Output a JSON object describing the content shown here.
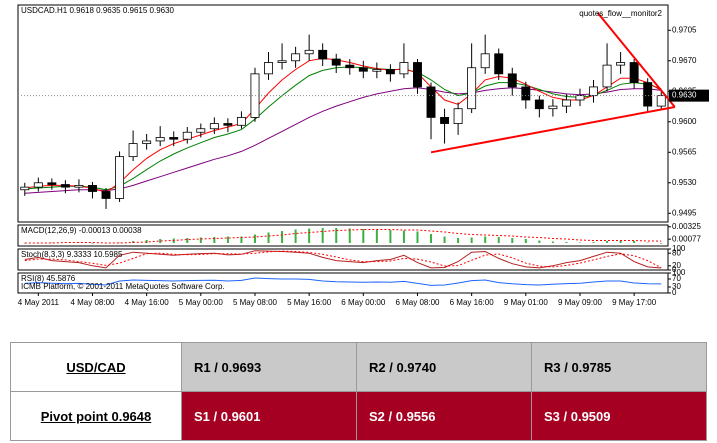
{
  "chart_data": [
    {
      "type": "candlestick",
      "title": "USDCAD.H1 0.9618 0.9635 0.9615 0.9630",
      "indicator_label": "quotes_flow__monitor2",
      "categories": [
        null,
        "4 May 2011",
        null,
        null,
        null,
        "4 May 08:00",
        null,
        null,
        null,
        "4 May 16:00",
        null,
        null,
        null,
        "5 May 00:00",
        null,
        null,
        null,
        "5 May 08:00",
        null,
        null,
        null,
        "5 May 16:00",
        null,
        null,
        null,
        "6 May 00:00",
        null,
        null,
        null,
        "6 May 08:00",
        null,
        null,
        null,
        "6 May 16:00",
        null,
        null,
        null,
        "9 May 01:00",
        null,
        null,
        null,
        "9 May 09:00",
        null,
        null,
        null,
        "9 May 17:00",
        null,
        null
      ],
      "open": [
        0.9522,
        0.9525,
        0.953,
        0.9528,
        0.9525,
        0.9527,
        0.952,
        0.9512,
        0.956,
        0.9575,
        0.9578,
        0.9582,
        0.958,
        0.9588,
        0.9592,
        0.9598,
        0.9596,
        0.9605,
        0.9655,
        0.9668,
        0.967,
        0.9678,
        0.9682,
        0.9672,
        0.9665,
        0.9662,
        0.9658,
        0.966,
        0.9655,
        0.9668,
        0.964,
        0.9605,
        0.9598,
        0.9615,
        0.9662,
        0.9678,
        0.9655,
        0.964,
        0.9625,
        0.9615,
        0.9618,
        0.9625,
        0.963,
        0.964,
        0.9665,
        0.9668,
        0.9645,
        0.9618
      ],
      "high": [
        0.953,
        0.9536,
        0.9535,
        0.9533,
        0.9534,
        0.9531,
        0.9524,
        0.9566,
        0.959,
        0.9586,
        0.9595,
        0.9589,
        0.9594,
        0.9598,
        0.9605,
        0.9604,
        0.9612,
        0.9662,
        0.968,
        0.969,
        0.9686,
        0.97,
        0.969,
        0.9678,
        0.9672,
        0.967,
        0.9668,
        0.9666,
        0.969,
        0.9672,
        0.9645,
        0.9615,
        0.9622,
        0.969,
        0.97,
        0.9684,
        0.9662,
        0.9646,
        0.963,
        0.9626,
        0.9632,
        0.9638,
        0.9648,
        0.969,
        0.968,
        0.9672,
        0.965,
        0.9635
      ],
      "low": [
        0.9515,
        0.952,
        0.9522,
        0.9518,
        0.9519,
        0.9512,
        0.95,
        0.9508,
        0.9555,
        0.9568,
        0.9572,
        0.9572,
        0.9575,
        0.9582,
        0.9586,
        0.9588,
        0.9592,
        0.96,
        0.9648,
        0.966,
        0.9662,
        0.967,
        0.9664,
        0.9656,
        0.9654,
        0.965,
        0.965,
        0.9646,
        0.965,
        0.9632,
        0.958,
        0.9575,
        0.9585,
        0.961,
        0.9655,
        0.9648,
        0.963,
        0.9615,
        0.9605,
        0.9606,
        0.961,
        0.9618,
        0.9622,
        0.9635,
        0.9655,
        0.9638,
        0.9612,
        0.9615
      ],
      "close": [
        0.9525,
        0.953,
        0.9528,
        0.9525,
        0.9527,
        0.952,
        0.9512,
        0.956,
        0.9575,
        0.9578,
        0.9582,
        0.958,
        0.9588,
        0.9592,
        0.9598,
        0.9596,
        0.9605,
        0.9655,
        0.9668,
        0.967,
        0.9678,
        0.9682,
        0.9672,
        0.9665,
        0.9662,
        0.9658,
        0.966,
        0.9655,
        0.9668,
        0.964,
        0.9605,
        0.9598,
        0.9615,
        0.9662,
        0.9678,
        0.9655,
        0.964,
        0.9625,
        0.9615,
        0.9618,
        0.9625,
        0.963,
        0.964,
        0.9665,
        0.9668,
        0.9645,
        0.9618,
        0.963
      ],
      "lines": [
        {
          "color": "#800080",
          "values": [
            0.9518,
            0.9519,
            0.952,
            0.9521,
            0.9522,
            0.9522,
            0.9521,
            0.9523,
            0.9527,
            0.9532,
            0.9537,
            0.9542,
            0.9547,
            0.9552,
            0.9557,
            0.9561,
            0.9566,
            0.9573,
            0.9581,
            0.9589,
            0.9597,
            0.9605,
            0.9612,
            0.9618,
            0.9623,
            0.9628,
            0.9632,
            0.9635,
            0.9638,
            0.9639,
            0.9637,
            0.9634,
            0.9632,
            0.9633,
            0.9636,
            0.9638,
            0.9639,
            0.9638,
            0.9636,
            0.9634,
            0.9632,
            0.9631,
            0.9632,
            0.9634,
            0.9637,
            0.9638,
            0.9638,
            0.9636
          ]
        },
        {
          "color": "#008000",
          "values": [
            0.9523,
            0.9524,
            0.9525,
            0.9526,
            0.9526,
            0.9525,
            0.9522,
            0.9526,
            0.9535,
            0.9545,
            0.9555,
            0.9563,
            0.957,
            0.9576,
            0.9582,
            0.9586,
            0.9591,
            0.9603,
            0.9617,
            0.963,
            0.9642,
            0.9653,
            0.9659,
            0.9662,
            0.9663,
            0.9662,
            0.9661,
            0.966,
            0.966,
            0.9657,
            0.9648,
            0.9637,
            0.963,
            0.9633,
            0.9641,
            0.9645,
            0.9645,
            0.9642,
            0.9637,
            0.9632,
            0.9629,
            0.9628,
            0.963,
            0.9636,
            0.9643,
            0.9645,
            0.9643,
            0.9638
          ]
        },
        {
          "color": "#ff0000",
          "values": [
            0.9524,
            0.9526,
            0.9527,
            0.9527,
            0.9526,
            0.9524,
            0.9519,
            0.953,
            0.9545,
            0.9558,
            0.9568,
            0.9575,
            0.958,
            0.9585,
            0.959,
            0.9594,
            0.9598,
            0.9615,
            0.9633,
            0.9648,
            0.966,
            0.967,
            0.9673,
            0.9671,
            0.9668,
            0.9664,
            0.9661,
            0.9659,
            0.9661,
            0.9656,
            0.964,
            0.9625,
            0.962,
            0.9632,
            0.9648,
            0.9652,
            0.965,
            0.9643,
            0.9635,
            0.9628,
            0.9625,
            0.9625,
            0.963,
            0.964,
            0.965,
            0.965,
            0.9645,
            0.9636
          ]
        }
      ],
      "trendlines": [
        {
          "color": "#ff0000",
          "x": [
            30,
            48
          ],
          "y": [
            0.9565,
            0.9617
          ]
        },
        {
          "color": "#ff0000",
          "x": [
            42.3,
            48
          ],
          "y": [
            0.9725,
            0.9617
          ]
        }
      ],
      "last_price": {
        "value": 0.963,
        "label": "0.9630"
      },
      "ylim": [
        0.9485,
        0.9734
      ],
      "yticks": [
        0.9495,
        {
          "value": 0.953,
          "label": "0.9530"
        },
        0.9565,
        {
          "value": 0.96,
          "label": "0.9600"
        },
        0.9635,
        {
          "value": 0.967,
          "label": "0.9670"
        },
        0.9705
      ]
    },
    {
      "type": "bar",
      "title": "MACD(12,26,9) -0.00013 0.00038",
      "series": [
        {
          "color": "#3cb043",
          "style": "bar",
          "values": [
            -0.0001,
            0,
            0.0001,
            0.0001,
            0.0001,
            0,
            -0.0001,
            0.0001,
            0.0004,
            0.0006,
            0.0008,
            0.0009,
            0.001,
            0.0011,
            0.0012,
            0.0013,
            0.0013,
            0.0017,
            0.0021,
            0.0024,
            0.0027,
            0.0029,
            0.003,
            0.003,
            0.0029,
            0.0028,
            0.0027,
            0.0026,
            0.0025,
            0.0023,
            0.0018,
            0.0013,
            0.001,
            0.0011,
            0.0013,
            0.0012,
            0.001,
            0.0008,
            0.0005,
            0.0003,
            0.0002,
            0.0001,
            0.0002,
            0.0004,
            0.0005,
            0.0004,
            0.0001,
            -0.00013
          ]
        },
        {
          "color": "#ff0000",
          "style": "dotted",
          "values": [
            0,
            0,
            0,
            0.0001,
            0.0001,
            0.0001,
            0,
            0,
            0.0001,
            0.0002,
            0.0004,
            0.0005,
            0.0007,
            0.0008,
            0.0009,
            0.001,
            0.0011,
            0.0012,
            0.0014,
            0.0016,
            0.0019,
            0.0021,
            0.0023,
            0.0025,
            0.0026,
            0.0027,
            0.0027,
            0.0027,
            0.0026,
            0.0026,
            0.0024,
            0.0022,
            0.0019,
            0.0017,
            0.0016,
            0.0015,
            0.0014,
            0.0012,
            0.0011,
            0.0009,
            0.0008,
            0.0006,
            0.0005,
            0.0005,
            0.0005,
            0.0005,
            0.0004,
            0.00038
          ]
        }
      ],
      "ylim": [
        -0.0006,
        0.0036
      ],
      "yticks": [
        0.00325,
        0.00077
      ]
    },
    {
      "type": "line",
      "title": "Stoch(8,3,3) 9.3333 10.5985",
      "series": [
        {
          "color": "#b22222",
          "style": "solid",
          "values": [
            50,
            60,
            45,
            40,
            35,
            20,
            10,
            70,
            85,
            80,
            75,
            70,
            75,
            78,
            80,
            72,
            75,
            92,
            90,
            88,
            85,
            80,
            60,
            45,
            40,
            35,
            45,
            50,
            70,
            35,
            10,
            12,
            40,
            85,
            88,
            55,
            30,
            15,
            10,
            20,
            35,
            45,
            65,
            85,
            80,
            40,
            15,
            9.3333
          ]
        },
        {
          "color": "#ff0000",
          "style": "dotted",
          "values": [
            45,
            52,
            52,
            48,
            40,
            32,
            22,
            33,
            55,
            78,
            80,
            75,
            73,
            74,
            78,
            77,
            76,
            80,
            86,
            90,
            88,
            84,
            75,
            62,
            48,
            40,
            40,
            43,
            55,
            52,
            38,
            19,
            21,
            46,
            71,
            76,
            58,
            33,
            18,
            15,
            22,
            33,
            48,
            65,
            77,
            68,
            45,
            10.5985
          ]
        }
      ],
      "ylim": [
        0,
        100
      ],
      "yticks": [
        100,
        80,
        20,
        0
      ]
    },
    {
      "type": "line",
      "title": "RSI(8) 45.5876",
      "annotation": "ICMB Platform, © 2001-2011 MetaQuotes Software Corp.",
      "series": [
        {
          "color": "#1e64ff",
          "style": "solid",
          "values": [
            48,
            52,
            49,
            47,
            48,
            44,
            40,
            60,
            65,
            63,
            62,
            60,
            62,
            63,
            64,
            60,
            63,
            75,
            72,
            70,
            70,
            68,
            60,
            56,
            55,
            54,
            55,
            54,
            58,
            48,
            38,
            40,
            50,
            62,
            65,
            52,
            46,
            42,
            40,
            44,
            47,
            49,
            55,
            60,
            60,
            50,
            46,
            45.5876
          ]
        }
      ],
      "ylim": [
        0,
        100
      ],
      "yticks": [
        100,
        70,
        30,
        0
      ]
    }
  ],
  "table": {
    "pair": "USD/CAD",
    "pivot": "Pivot point 0.9648",
    "rows": [
      [
        "R1 / 0.9693",
        "R2 / 0.9740",
        "R3 / 0.9785"
      ],
      [
        "S1 / 0.9601",
        "S2 / 0.9556",
        "S3 / 0.9509"
      ]
    ]
  }
}
